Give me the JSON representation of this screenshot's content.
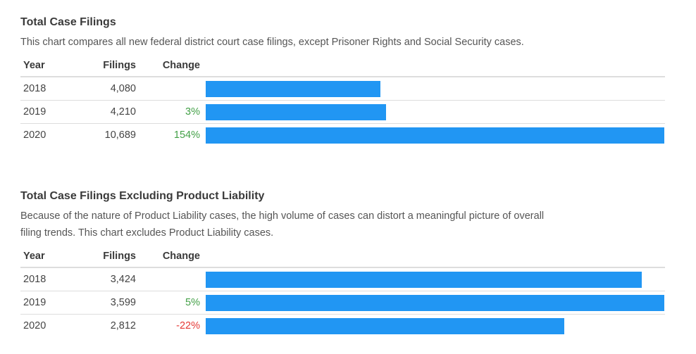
{
  "colors": {
    "bar": "#2196F3",
    "positive": "#43A047",
    "negative": "#E53935"
  },
  "headers": {
    "year": "Year",
    "filings": "Filings",
    "change": "Change"
  },
  "chart_data": [
    {
      "type": "bar",
      "orientation": "horizontal",
      "title": "Total Case Filings",
      "subtitle": "This chart compares all new federal district court case filings, except Prisoner Rights and Social Security cases.",
      "categories": [
        "2018",
        "2019",
        "2020"
      ],
      "values": [
        4080,
        4210,
        10689
      ],
      "value_labels": [
        "4,080",
        "4,210",
        "10,689"
      ],
      "change_labels": [
        "",
        "3%",
        "154%"
      ],
      "change_sign": [
        "none",
        "positive",
        "positive"
      ],
      "xlim": [
        0,
        10689
      ]
    },
    {
      "type": "bar",
      "orientation": "horizontal",
      "title": "Total Case Filings Excluding Product Liability",
      "subtitle": "Because of the nature of Product Liability cases, the high volume of cases can distort a meaningful picture of overall filing trends. This chart excludes Product Liability cases.",
      "categories": [
        "2018",
        "2019",
        "2020"
      ],
      "values": [
        3424,
        3599,
        2812
      ],
      "value_labels": [
        "3,424",
        "3,599",
        "2,812"
      ],
      "change_labels": [
        "",
        "5%",
        "-22%"
      ],
      "change_sign": [
        "none",
        "positive",
        "negative"
      ],
      "xlim": [
        0,
        3599
      ]
    }
  ]
}
